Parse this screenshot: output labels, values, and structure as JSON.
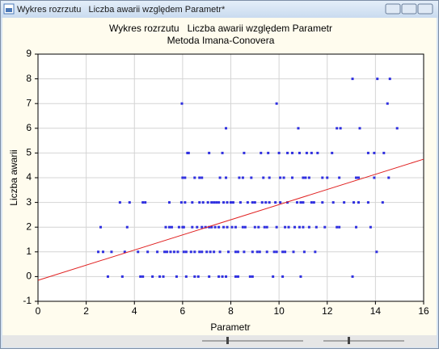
{
  "window": {
    "title": "Wykres rozrzutu   Liczba awarii względem Parametr*"
  },
  "chart_data": {
    "type": "scatter",
    "title": "Wykres rozrzutu   Liczba awarii względem Parametr",
    "subtitle": "Metoda Imana-Conovera",
    "xlabel": "Parametr",
    "ylabel": "Liczba awarii",
    "xlim": [
      0,
      16
    ],
    "ylim": [
      -1,
      9
    ],
    "xticks": [
      0,
      2,
      4,
      6,
      8,
      10,
      12,
      14,
      16
    ],
    "yticks": [
      -1,
      0,
      1,
      2,
      3,
      4,
      5,
      6,
      7,
      8,
      9
    ],
    "grid": true,
    "series": [
      {
        "color": "#2f2fe0",
        "x": [
          13.05,
          14.08,
          14.6,
          5.97,
          9.9,
          14.5,
          7.8,
          10.8,
          12.4,
          12.55,
          13.35,
          14.9,
          6.2,
          6.25,
          7.1,
          7.65,
          8.55,
          9.25,
          9.55,
          10.0,
          10.35,
          10.55,
          10.85,
          11.15,
          11.35,
          11.6,
          12.2,
          13.7,
          13.95,
          14.35,
          6.0,
          6.1,
          6.5,
          6.7,
          6.8,
          7.55,
          7.8,
          8.35,
          8.5,
          8.85,
          9.35,
          9.6,
          10.05,
          10.2,
          10.55,
          11.0,
          11.1,
          11.25,
          11.8,
          12.0,
          12.5,
          13.2,
          13.3,
          13.95,
          14.55,
          3.4,
          3.8,
          4.35,
          4.45,
          5.45,
          5.95,
          6.1,
          6.4,
          6.7,
          6.85,
          7.05,
          7.2,
          7.3,
          7.4,
          7.5,
          7.7,
          7.85,
          8.0,
          8.1,
          8.4,
          8.7,
          8.9,
          9.0,
          9.3,
          9.45,
          9.6,
          9.85,
          10.05,
          10.35,
          10.75,
          10.9,
          11.0,
          11.35,
          11.45,
          11.8,
          12.25,
          12.7,
          13.1,
          13.3,
          13.7,
          14.3,
          2.6,
          3.7,
          5.3,
          5.45,
          5.55,
          5.85,
          6.0,
          6.05,
          6.4,
          6.6,
          6.8,
          6.95,
          7.1,
          7.2,
          7.35,
          7.5,
          7.7,
          7.85,
          8.05,
          8.2,
          8.5,
          8.6,
          9.0,
          9.15,
          9.4,
          9.5,
          9.9,
          10.25,
          10.4,
          10.65,
          10.85,
          11.0,
          11.25,
          11.55,
          11.9,
          12.4,
          12.5,
          13.2,
          13.8,
          2.5,
          2.7,
          3.05,
          3.6,
          4.15,
          4.55,
          4.95,
          5.25,
          5.35,
          5.5,
          5.65,
          5.8,
          6.05,
          6.15,
          6.35,
          6.5,
          6.7,
          6.8,
          7.0,
          7.15,
          7.3,
          7.55,
          7.9,
          8.2,
          8.3,
          8.55,
          8.9,
          9.1,
          9.2,
          9.5,
          9.8,
          9.9,
          10.15,
          10.25,
          10.6,
          11.05,
          11.5,
          14.05,
          2.9,
          3.5,
          4.25,
          4.35,
          4.75,
          5.05,
          5.2,
          5.75,
          6.15,
          6.5,
          6.65,
          7.1,
          7.5,
          7.65,
          7.8,
          8.2,
          8.3,
          8.8,
          8.9,
          9.75,
          10.15,
          10.9,
          13.05
        ],
        "values": [
          8,
          8,
          8,
          7,
          7,
          7,
          6,
          6,
          6,
          6,
          6,
          6,
          5,
          5,
          5,
          5,
          5,
          5,
          5,
          5,
          5,
          5,
          5,
          5,
          5,
          5,
          5,
          5,
          5,
          5,
          4,
          4,
          4,
          4,
          4,
          4,
          4,
          4,
          4,
          4,
          4,
          4,
          4,
          4,
          4,
          4,
          4,
          4,
          4,
          4,
          4,
          4,
          4,
          4,
          4,
          3,
          3,
          3,
          3,
          3,
          3,
          3,
          3,
          3,
          3,
          3,
          3,
          3,
          3,
          3,
          3,
          3,
          3,
          3,
          3,
          3,
          3,
          3,
          3,
          3,
          3,
          3,
          3,
          3,
          3,
          3,
          3,
          3,
          3,
          3,
          3,
          3,
          3,
          3,
          3,
          3,
          2,
          2,
          2,
          2,
          2,
          2,
          2,
          2,
          2,
          2,
          2,
          2,
          2,
          2,
          2,
          2,
          2,
          2,
          2,
          2,
          2,
          2,
          2,
          2,
          2,
          2,
          2,
          2,
          2,
          2,
          2,
          2,
          2,
          2,
          2,
          2,
          2,
          2,
          2,
          1,
          1,
          1,
          1,
          1,
          1,
          1,
          1,
          1,
          1,
          1,
          1,
          1,
          1,
          1,
          1,
          1,
          1,
          1,
          1,
          1,
          1,
          1,
          1,
          1,
          1,
          1,
          1,
          1,
          1,
          1,
          1,
          1,
          1,
          1,
          1,
          1,
          1,
          0,
          0,
          0,
          0,
          0,
          0,
          0,
          0,
          0,
          0,
          0,
          0,
          0,
          0,
          0,
          0,
          0,
          0,
          0,
          0,
          0,
          0,
          0
        ]
      }
    ],
    "fit_line": {
      "color": "#e02020",
      "x": [
        0,
        16
      ],
      "values": [
        -0.15,
        4.75
      ]
    }
  }
}
